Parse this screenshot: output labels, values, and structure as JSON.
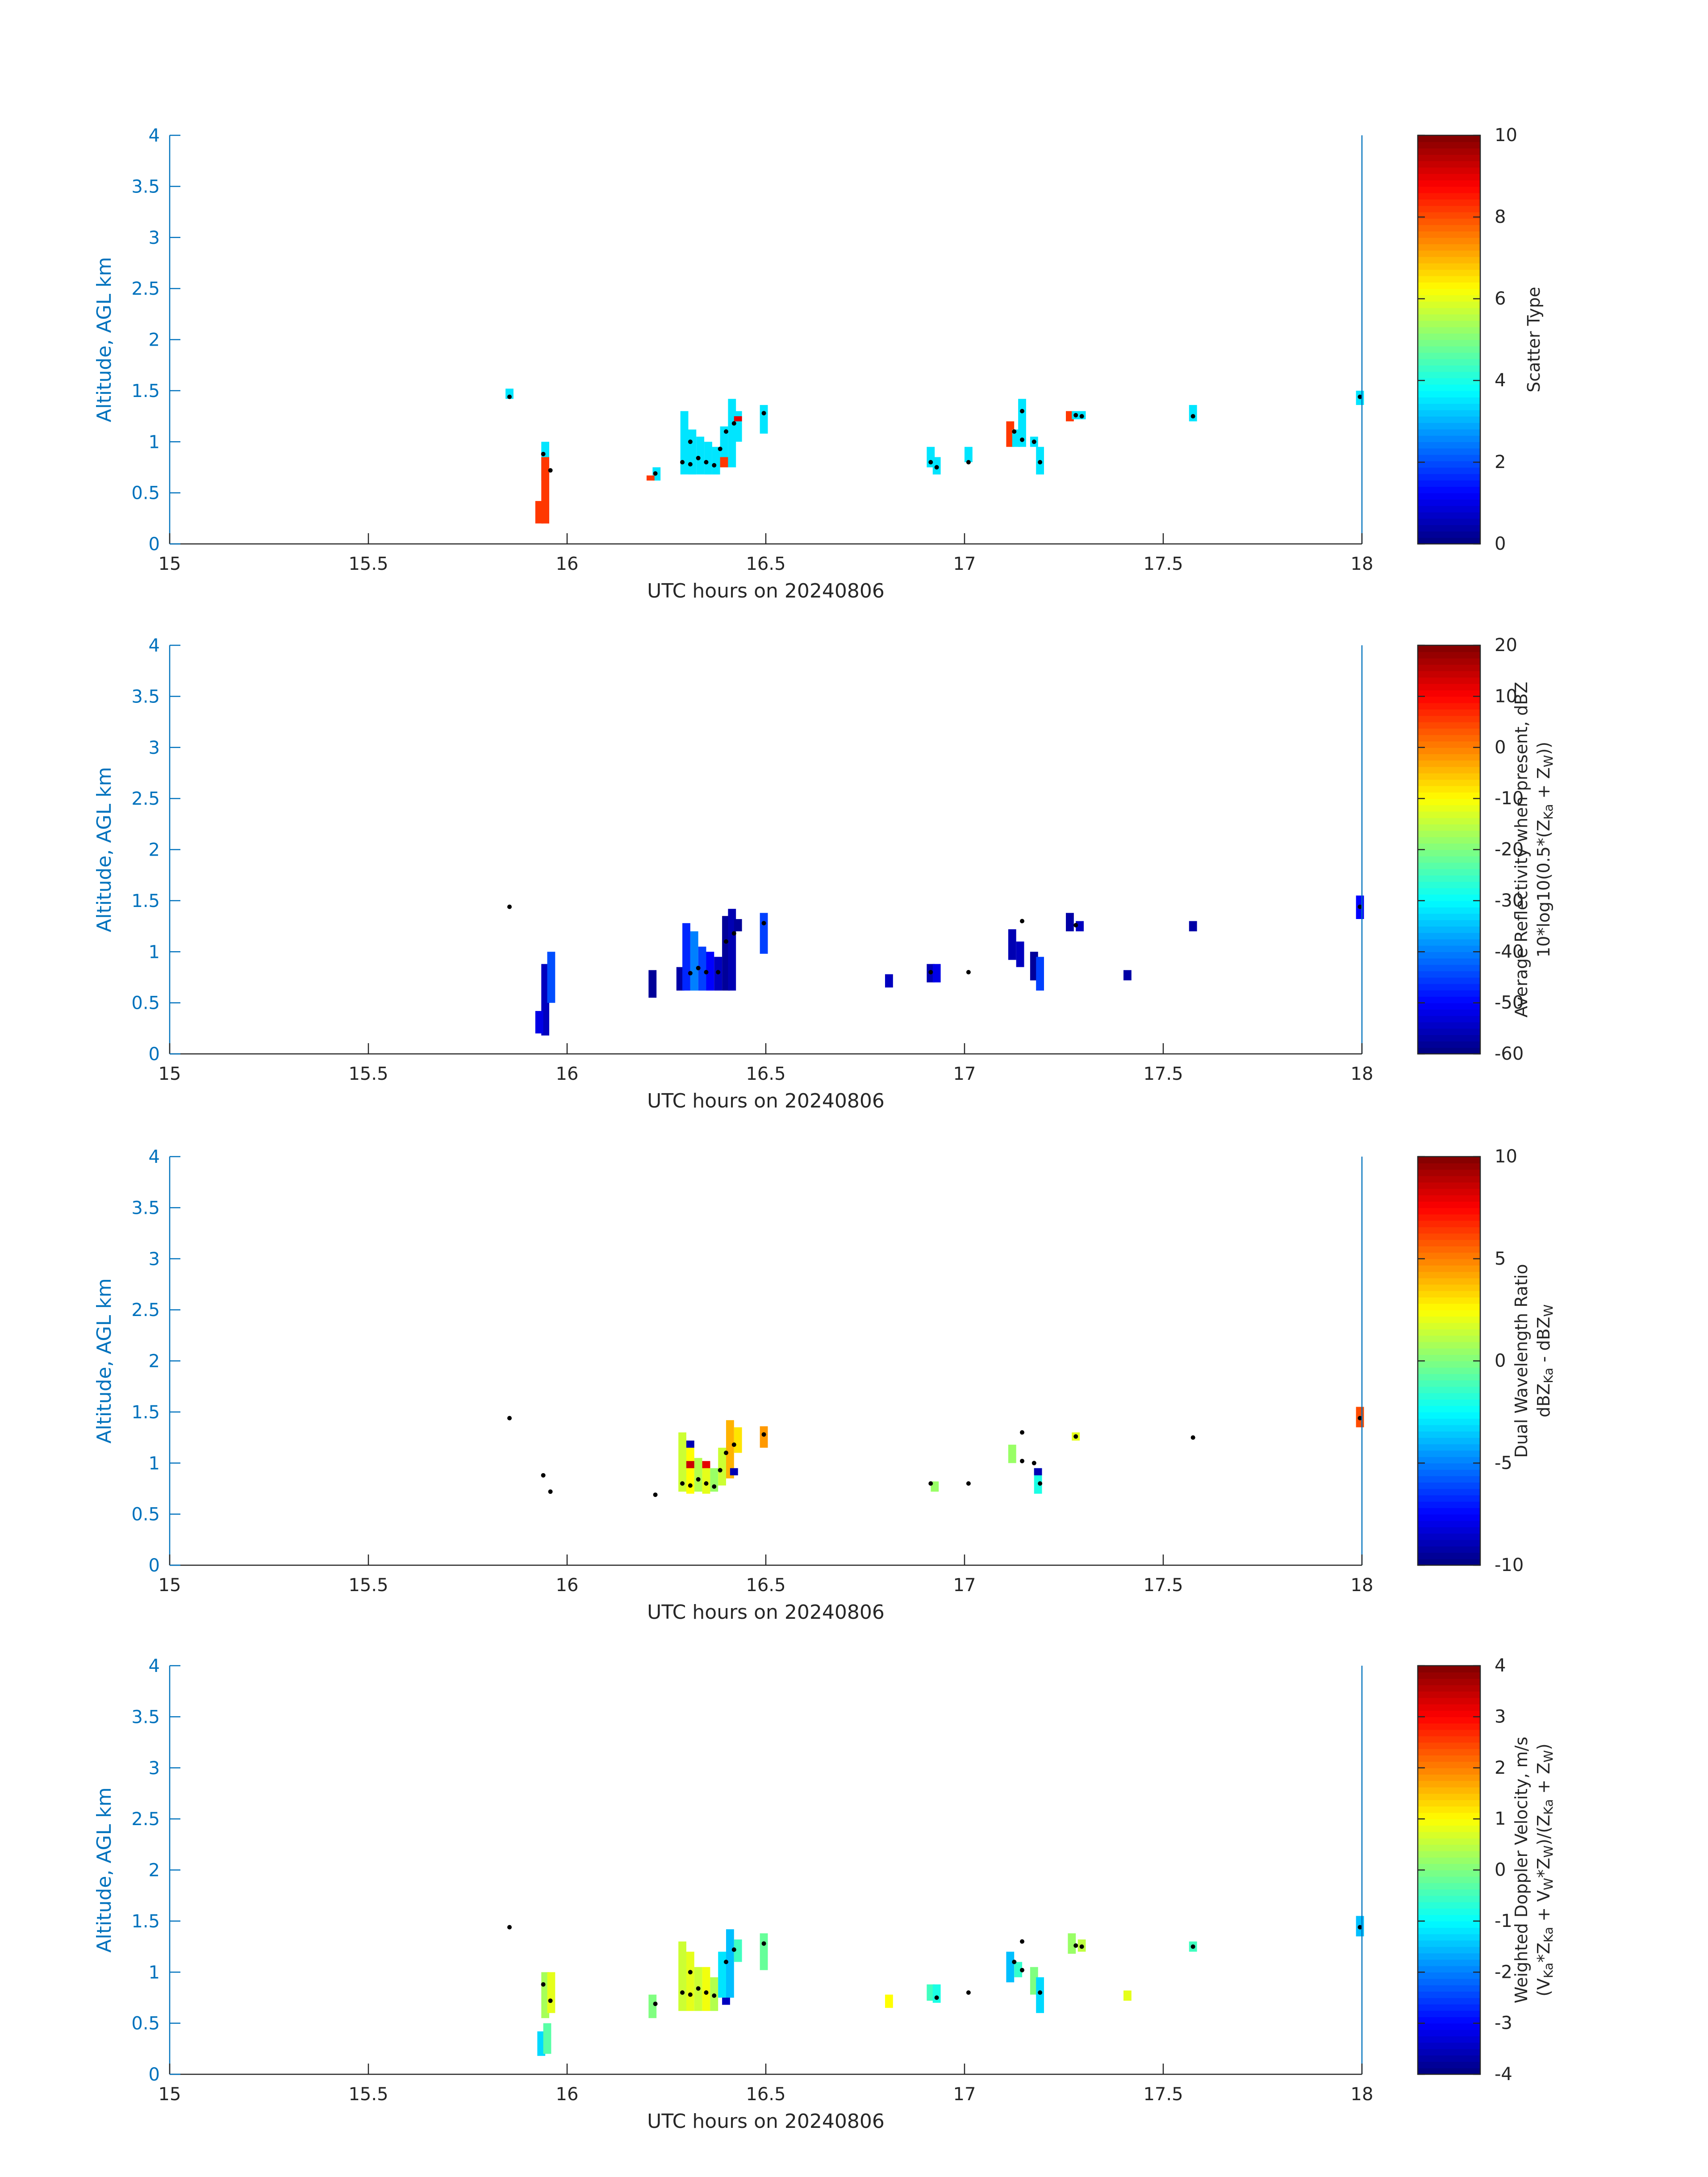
{
  "figure": {
    "axis_color": "#0072bd",
    "text_color": "#262626",
    "marker_color": "#000000"
  },
  "chart_data": [
    {
      "type": "heatmap",
      "xlabel": "UTC hours on 20240806",
      "ylabel": "Altitude, AGL km",
      "xlim": [
        15,
        18
      ],
      "ylim": [
        0,
        4
      ],
      "xticks": [
        "15",
        "15.5",
        "16",
        "16.5",
        "17",
        "17.5",
        "18"
      ],
      "yticks": [
        "0",
        "0.5",
        "1",
        "1.5",
        "2",
        "2.5",
        "3",
        "3.5",
        "4"
      ],
      "colorbar": {
        "label_lines": [
          "Scatter Type"
        ],
        "clim": [
          0,
          10
        ],
        "ticks": [
          "0",
          "2",
          "4",
          "6",
          "8",
          "10"
        ]
      },
      "cells": [
        [
          15.855,
          1.42,
          1.52,
          3.5
        ],
        [
          15.945,
          0.62,
          1.0,
          3.5
        ],
        [
          15.93,
          0.2,
          0.42,
          8.2
        ],
        [
          15.945,
          0.2,
          0.85,
          8.2
        ],
        [
          16.225,
          0.62,
          0.75,
          3.5
        ],
        [
          16.21,
          0.62,
          0.67,
          8.2
        ],
        [
          16.295,
          0.68,
          1.3,
          3.5
        ],
        [
          16.315,
          0.68,
          1.12,
          3.5
        ],
        [
          16.335,
          0.68,
          1.05,
          3.5
        ],
        [
          16.355,
          0.68,
          1.0,
          3.5
        ],
        [
          16.375,
          0.68,
          0.95,
          3.5
        ],
        [
          16.395,
          0.75,
          1.15,
          3.5
        ],
        [
          16.415,
          0.75,
          1.42,
          3.5
        ],
        [
          16.43,
          1.0,
          1.3,
          3.5
        ],
        [
          16.395,
          0.75,
          0.85,
          8.2
        ],
        [
          16.43,
          1.2,
          1.25,
          9.0
        ],
        [
          16.495,
          1.08,
          1.36,
          3.5
        ],
        [
          16.915,
          0.75,
          0.95,
          3.5
        ],
        [
          16.93,
          0.68,
          0.85,
          3.5
        ],
        [
          17.01,
          0.8,
          0.95,
          3.5
        ],
        [
          17.115,
          0.95,
          1.2,
          8.2
        ],
        [
          17.13,
          0.95,
          1.12,
          3.5
        ],
        [
          17.145,
          0.95,
          1.42,
          3.5
        ],
        [
          17.175,
          0.95,
          1.05,
          3.5
        ],
        [
          17.19,
          0.68,
          0.95,
          3.5
        ],
        [
          17.265,
          1.2,
          1.3,
          8.2
        ],
        [
          17.28,
          1.22,
          1.3,
          3.5
        ],
        [
          17.295,
          1.22,
          1.3,
          3.5
        ],
        [
          17.575,
          1.2,
          1.36,
          3.5
        ],
        [
          17.995,
          1.36,
          1.5,
          3.5
        ]
      ],
      "markers": [
        [
          15.855,
          1.44
        ],
        [
          15.94,
          0.88
        ],
        [
          15.958,
          0.72
        ],
        [
          16.222,
          0.69
        ],
        [
          16.29,
          0.8
        ],
        [
          16.31,
          0.78
        ],
        [
          16.33,
          0.84
        ],
        [
          16.35,
          0.8
        ],
        [
          16.37,
          0.77
        ],
        [
          16.31,
          1.0
        ],
        [
          16.385,
          0.93
        ],
        [
          16.4,
          1.1
        ],
        [
          16.42,
          1.18
        ],
        [
          16.495,
          1.28
        ],
        [
          16.915,
          0.8
        ],
        [
          16.93,
          0.75
        ],
        [
          17.01,
          0.8
        ],
        [
          17.125,
          1.1
        ],
        [
          17.145,
          1.3
        ],
        [
          17.145,
          1.02
        ],
        [
          17.175,
          1.0
        ],
        [
          17.19,
          0.8
        ],
        [
          17.28,
          1.26
        ],
        [
          17.295,
          1.25
        ],
        [
          17.575,
          1.25
        ],
        [
          17.995,
          1.44
        ]
      ]
    },
    {
      "type": "heatmap",
      "xlabel": "UTC hours on 20240806",
      "ylabel": "Altitude, AGL km",
      "xlim": [
        15,
        18
      ],
      "ylim": [
        0,
        4
      ],
      "xticks": [
        "15",
        "15.5",
        "16",
        "16.5",
        "17",
        "17.5",
        "18"
      ],
      "yticks": [
        "0",
        "0.5",
        "1",
        "1.5",
        "2",
        "2.5",
        "3",
        "3.5",
        "4"
      ],
      "colorbar": {
        "label_lines": [
          "Average Reflectivity when present, dBZ",
          "10*log10(0.5*(Z_Ka + Z_W))"
        ],
        "clim": [
          -60,
          20
        ],
        "ticks": [
          "-60",
          "-50",
          "-40",
          "-30",
          "-20",
          "-10",
          "0",
          "10",
          "20"
        ]
      },
      "cells": [
        [
          15.945,
          0.18,
          0.88,
          -55
        ],
        [
          15.96,
          0.5,
          1.0,
          -44
        ],
        [
          15.93,
          0.2,
          0.42,
          -52
        ],
        [
          16.215,
          0.55,
          0.82,
          -58
        ],
        [
          16.285,
          0.62,
          0.85,
          -57
        ],
        [
          16.3,
          0.62,
          1.28,
          -47
        ],
        [
          16.32,
          0.62,
          1.2,
          -40
        ],
        [
          16.34,
          0.62,
          1.05,
          -45
        ],
        [
          16.36,
          0.62,
          1.0,
          -50
        ],
        [
          16.38,
          0.62,
          0.95,
          -55
        ],
        [
          16.4,
          0.62,
          1.35,
          -58
        ],
        [
          16.415,
          0.62,
          1.42,
          -56
        ],
        [
          16.43,
          1.2,
          1.32,
          -58
        ],
        [
          16.495,
          0.98,
          1.38,
          -45
        ],
        [
          16.81,
          0.65,
          0.78,
          -55
        ],
        [
          16.915,
          0.7,
          0.88,
          -56
        ],
        [
          16.93,
          0.7,
          0.88,
          -52
        ],
        [
          17.12,
          0.92,
          1.22,
          -56
        ],
        [
          17.14,
          0.85,
          1.1,
          -55
        ],
        [
          17.175,
          0.72,
          1.0,
          -58
        ],
        [
          17.19,
          0.62,
          0.95,
          -45
        ],
        [
          17.265,
          1.2,
          1.38,
          -57
        ],
        [
          17.29,
          1.2,
          1.3,
          -55
        ],
        [
          17.41,
          0.72,
          0.82,
          -57
        ],
        [
          17.575,
          1.2,
          1.3,
          -57
        ],
        [
          17.995,
          1.32,
          1.55,
          -50
        ]
      ],
      "markers": [
        [
          15.855,
          1.44
        ],
        [
          16.31,
          0.79
        ],
        [
          16.33,
          0.84
        ],
        [
          16.35,
          0.8
        ],
        [
          16.38,
          0.8
        ],
        [
          16.4,
          1.1
        ],
        [
          16.42,
          1.18
        ],
        [
          16.495,
          1.28
        ],
        [
          16.915,
          0.8
        ],
        [
          17.01,
          0.8
        ],
        [
          17.145,
          1.3
        ],
        [
          17.28,
          1.26
        ],
        [
          17.995,
          1.44
        ]
      ]
    },
    {
      "type": "heatmap",
      "xlabel": "UTC hours on 20240806",
      "ylabel": "Altitude, AGL km",
      "xlim": [
        15,
        18
      ],
      "ylim": [
        0,
        4
      ],
      "xticks": [
        "15",
        "15.5",
        "16",
        "16.5",
        "17",
        "17.5",
        "18"
      ],
      "yticks": [
        "0",
        "0.5",
        "1",
        "1.5",
        "2",
        "2.5",
        "3",
        "3.5",
        "4"
      ],
      "colorbar": {
        "label_lines": [
          "Dual Wavelength Ratio",
          "dBZ_Ka - dBZ_W"
        ],
        "clim": [
          -10,
          10
        ],
        "ticks": [
          "-10",
          "-5",
          "0",
          "5",
          "10"
        ]
      },
      "cells": [
        [
          16.29,
          0.72,
          1.3,
          1.5
        ],
        [
          16.31,
          0.7,
          1.22,
          2.5
        ],
        [
          16.33,
          0.72,
          1.05,
          1.0
        ],
        [
          16.35,
          0.7,
          1.0,
          2.0
        ],
        [
          16.37,
          0.72,
          0.95,
          0.5
        ],
        [
          16.39,
          0.78,
          1.15,
          1.5
        ],
        [
          16.41,
          0.85,
          1.42,
          4.0
        ],
        [
          16.43,
          1.1,
          1.35,
          3.0
        ],
        [
          16.31,
          1.15,
          1.22,
          -9.0
        ],
        [
          16.31,
          0.95,
          1.02,
          8.5
        ],
        [
          16.35,
          0.95,
          1.02,
          8.0
        ],
        [
          16.42,
          0.88,
          0.95,
          -9.0
        ],
        [
          16.495,
          1.15,
          1.36,
          4.5
        ],
        [
          16.925,
          0.72,
          0.82,
          0.5
        ],
        [
          17.12,
          1.0,
          1.18,
          0.5
        ],
        [
          17.185,
          0.7,
          0.95,
          -2.0
        ],
        [
          17.185,
          0.88,
          0.95,
          -9.0
        ],
        [
          17.28,
          1.22,
          1.3,
          2.0
        ],
        [
          17.995,
          1.35,
          1.55,
          6.0
        ]
      ],
      "markers": [
        [
          15.855,
          1.44
        ],
        [
          15.94,
          0.88
        ],
        [
          15.958,
          0.72
        ],
        [
          16.222,
          0.69
        ],
        [
          16.29,
          0.8
        ],
        [
          16.31,
          0.78
        ],
        [
          16.33,
          0.84
        ],
        [
          16.35,
          0.8
        ],
        [
          16.37,
          0.77
        ],
        [
          16.385,
          0.93
        ],
        [
          16.4,
          1.1
        ],
        [
          16.42,
          1.18
        ],
        [
          16.495,
          1.28
        ],
        [
          16.915,
          0.8
        ],
        [
          17.01,
          0.8
        ],
        [
          17.145,
          1.3
        ],
        [
          17.145,
          1.02
        ],
        [
          17.175,
          1.0
        ],
        [
          17.19,
          0.8
        ],
        [
          17.28,
          1.26
        ],
        [
          17.575,
          1.25
        ],
        [
          17.995,
          1.44
        ]
      ]
    },
    {
      "type": "heatmap",
      "xlabel": "UTC hours on 20240806",
      "ylabel": "Altitude, AGL km",
      "xlim": [
        15,
        18
      ],
      "ylim": [
        0,
        4
      ],
      "xticks": [
        "15",
        "15.5",
        "16",
        "16.5",
        "17",
        "17.5",
        "18"
      ],
      "yticks": [
        "0",
        "0.5",
        "1",
        "1.5",
        "2",
        "2.5",
        "3",
        "3.5",
        "4"
      ],
      "colorbar": {
        "label_lines": [
          "Weighted Doppler Velocity, m/s",
          "(V_Ka*Z_Ka + V_W*Z_W)/(Z_Ka + Z_W)"
        ],
        "clim": [
          -4,
          4
        ],
        "ticks": [
          "-4",
          "-3",
          "-2",
          "-1",
          "0",
          "1",
          "2",
          "3",
          "4"
        ]
      },
      "cells": [
        [
          15.935,
          0.18,
          0.42,
          -1.3
        ],
        [
          15.95,
          0.2,
          0.5,
          -0.3
        ],
        [
          15.945,
          0.55,
          1.0,
          0.3
        ],
        [
          15.96,
          0.6,
          1.0,
          0.8
        ],
        [
          16.215,
          0.55,
          0.78,
          0.0
        ],
        [
          16.29,
          0.62,
          1.3,
          0.6
        ],
        [
          16.31,
          0.62,
          1.2,
          0.8
        ],
        [
          16.33,
          0.62,
          1.05,
          0.6
        ],
        [
          16.35,
          0.62,
          1.05,
          0.9
        ],
        [
          16.37,
          0.62,
          0.95,
          0.4
        ],
        [
          16.39,
          0.75,
          1.2,
          -1.2
        ],
        [
          16.41,
          0.75,
          1.42,
          -1.5
        ],
        [
          16.43,
          1.1,
          1.32,
          -0.5
        ],
        [
          16.4,
          0.68,
          0.75,
          -3.5
        ],
        [
          16.495,
          1.02,
          1.38,
          -0.2
        ],
        [
          16.81,
          0.65,
          0.78,
          1.0
        ],
        [
          16.915,
          0.72,
          0.88,
          -0.5
        ],
        [
          16.93,
          0.7,
          0.88,
          -0.8
        ],
        [
          17.115,
          0.9,
          1.2,
          -1.5
        ],
        [
          17.135,
          0.95,
          1.1,
          -0.6
        ],
        [
          17.175,
          0.78,
          1.05,
          0.0
        ],
        [
          17.19,
          0.6,
          0.95,
          -1.3
        ],
        [
          17.27,
          1.18,
          1.38,
          0.2
        ],
        [
          17.295,
          1.2,
          1.32,
          0.5
        ],
        [
          17.41,
          0.72,
          0.82,
          0.8
        ],
        [
          17.575,
          1.2,
          1.3,
          -0.5
        ],
        [
          17.995,
          1.35,
          1.55,
          -1.5
        ]
      ],
      "markers": [
        [
          15.855,
          1.44
        ],
        [
          15.94,
          0.88
        ],
        [
          15.958,
          0.72
        ],
        [
          16.222,
          0.69
        ],
        [
          16.29,
          0.8
        ],
        [
          16.31,
          0.78
        ],
        [
          16.33,
          0.84
        ],
        [
          16.35,
          0.8
        ],
        [
          16.37,
          0.77
        ],
        [
          16.31,
          1.0
        ],
        [
          16.4,
          1.1
        ],
        [
          16.42,
          1.22
        ],
        [
          16.495,
          1.28
        ],
        [
          16.93,
          0.75
        ],
        [
          17.01,
          0.8
        ],
        [
          17.125,
          1.1
        ],
        [
          17.145,
          1.3
        ],
        [
          17.145,
          1.02
        ],
        [
          17.19,
          0.8
        ],
        [
          17.28,
          1.26
        ],
        [
          17.295,
          1.25
        ],
        [
          17.575,
          1.25
        ],
        [
          17.995,
          1.44
        ]
      ]
    }
  ]
}
